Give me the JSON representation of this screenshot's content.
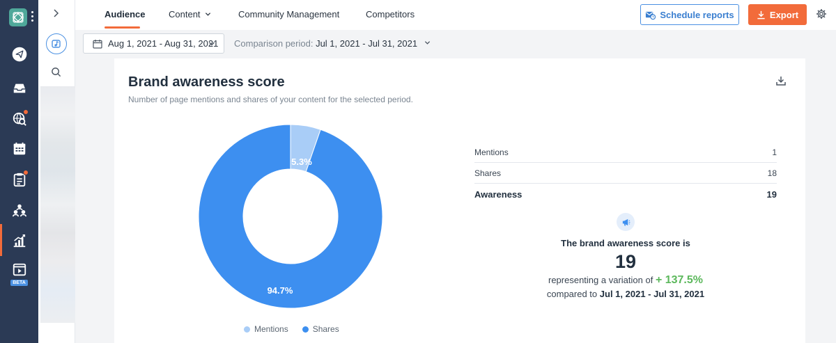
{
  "nav": {
    "tabs": [
      {
        "label": "Audience",
        "active": true
      },
      {
        "label": "Content"
      },
      {
        "label": "Community Management"
      },
      {
        "label": "Competitors"
      }
    ],
    "schedule_label": "Schedule reports",
    "export_label": "Export"
  },
  "rail": {
    "beta_label": "BETA"
  },
  "filters": {
    "date_range": "Aug 1, 2021 - Aug 31, 2021",
    "comparison_label": "Comparison period:",
    "comparison_value": "Jul 1, 2021 - Jul 31, 2021"
  },
  "card": {
    "title": "Brand awareness score",
    "subtitle": "Number of page mentions and shares of your content for the selected period."
  },
  "chart_data": {
    "type": "pie",
    "donut": true,
    "categories": [
      "Mentions",
      "Shares"
    ],
    "values": [
      5.3,
      94.7
    ],
    "labels": [
      "5.3%",
      "94.7%"
    ],
    "colors": [
      "#a9cdf7",
      "#3d8ff0"
    ],
    "legend_position": "bottom"
  },
  "metrics": {
    "rows": [
      {
        "label": "Mentions",
        "value": "1"
      },
      {
        "label": "Shares",
        "value": "18"
      }
    ],
    "total": {
      "label": "Awareness",
      "value": "19"
    }
  },
  "score": {
    "label": "The brand awareness score is",
    "value": "19",
    "variation_prefix": "representing a variation of",
    "variation_value": "+ 137.5%",
    "compared_prefix": "compared to",
    "compared_period": "Jul 1, 2021 - Jul 31, 2021"
  },
  "colors": {
    "accent": "#f26b3a",
    "primary": "#4a90e2",
    "positive": "#5cb85c",
    "rail": "#2b3a55"
  }
}
